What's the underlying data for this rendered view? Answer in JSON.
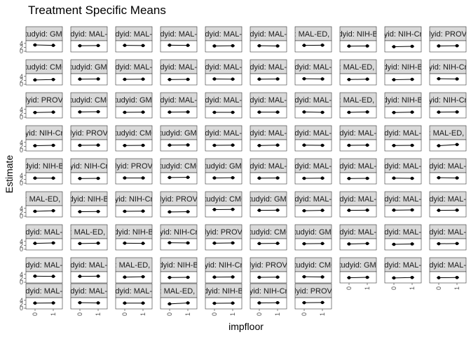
{
  "chart_data": {
    "type": "scatter",
    "layout": "facet-grid",
    "title": "Treatment Specific Means",
    "xlabel": "impfloor",
    "ylabel": "Estimate",
    "x_categories": [
      "0",
      "1"
    ],
    "y_ticks": [
      "0",
      "2",
      "4"
    ],
    "ylim": [
      0,
      5
    ],
    "grid": false,
    "ncol": 10,
    "colors": {
      "strip_fill": "#d9d9d9",
      "strip_border": "#333333",
      "panel_border": "#333333",
      "point": "#000000",
      "line": "#000000"
    },
    "panels": [
      {
        "label": "studyid: GMS",
        "values": [
          3.2,
          3.0
        ]
      },
      {
        "label": "studyid: MAL-ED",
        "values": [
          2.8,
          2.9
        ]
      },
      {
        "label": "studyid: MAL-ED",
        "values": [
          3.0,
          2.9
        ]
      },
      {
        "label": "studyid: MAL-ED",
        "values": [
          3.1,
          3.0
        ]
      },
      {
        "label": "studyid: MAL-ED",
        "values": [
          2.7,
          2.8
        ]
      },
      {
        "label": "studyid: MAL-ED",
        "values": [
          2.8,
          2.7
        ]
      },
      {
        "label": "studyid: MAL-ED, country",
        "values": [
          3.0,
          3.1
        ]
      },
      {
        "label": "studyid: NIH-Birth",
        "values": [
          2.6,
          2.7
        ]
      },
      {
        "label": "studyid: NIH-Crypto",
        "values": [
          2.3,
          2.5
        ]
      },
      {
        "label": "studyid: PROVIDE",
        "values": [
          2.7,
          2.8
        ]
      },
      {
        "label": "studyid: CMC",
        "values": [
          2.2,
          2.4
        ]
      },
      {
        "label": "studyid: GMS",
        "values": [
          2.6,
          2.7
        ]
      },
      {
        "label": "studyid: MAL-ED",
        "values": [
          2.5,
          2.6
        ]
      },
      {
        "label": "studyid: MAL-ED",
        "values": [
          2.4,
          2.5
        ]
      },
      {
        "label": "studyid: MAL-ED",
        "values": [
          2.7,
          2.6
        ]
      },
      {
        "label": "studyid: MAL-ED",
        "values": [
          2.6,
          2.7
        ]
      },
      {
        "label": "studyid: MAL-ED",
        "values": [
          2.8,
          2.7
        ]
      },
      {
        "label": "studyid: MAL-ED, country",
        "values": [
          2.4,
          2.6
        ]
      },
      {
        "label": "studyid: NIH-Birth",
        "values": [
          2.3,
          2.5
        ]
      },
      {
        "label": "studyid: NIH-Crypto",
        "values": [
          2.8,
          2.7
        ]
      },
      {
        "label": "studyid: PROVIDE",
        "values": [
          2.4,
          2.6
        ]
      },
      {
        "label": "studyid: CMC",
        "values": [
          2.7,
          2.8
        ]
      },
      {
        "label": "studyid: GMS",
        "values": [
          2.5,
          2.6
        ]
      },
      {
        "label": "studyid: MAL-ED",
        "values": [
          2.6,
          2.7
        ]
      },
      {
        "label": "studyid: MAL-ED",
        "values": [
          2.5,
          2.5
        ]
      },
      {
        "label": "studyid: MAL-ED",
        "values": [
          2.6,
          2.6
        ]
      },
      {
        "label": "studyid: MAL-ED",
        "values": [
          2.7,
          2.5
        ]
      },
      {
        "label": "studyid: MAL-ED, country",
        "values": [
          2.5,
          2.7
        ]
      },
      {
        "label": "studyid: NIH-Birth",
        "values": [
          2.4,
          2.6
        ]
      },
      {
        "label": "studyid: NIH-Crypto",
        "values": [
          2.6,
          2.7
        ]
      },
      {
        "label": "studyid: NIH-Crypto",
        "values": [
          2.3,
          2.5
        ]
      },
      {
        "label": "studyid: PROVIDE",
        "values": [
          2.5,
          2.6
        ]
      },
      {
        "label": "studyid: CMC",
        "values": [
          2.4,
          2.5
        ]
      },
      {
        "label": "studyid: GMS",
        "values": [
          2.6,
          2.7
        ]
      },
      {
        "label": "studyid: MAL-ED",
        "values": [
          2.5,
          2.6
        ]
      },
      {
        "label": "studyid: MAL-ED",
        "values": [
          2.4,
          2.6
        ]
      },
      {
        "label": "studyid: MAL-ED",
        "values": [
          2.6,
          2.5
        ]
      },
      {
        "label": "studyid: MAL-ED",
        "values": [
          2.5,
          2.6
        ]
      },
      {
        "label": "studyid: MAL-ED",
        "values": [
          2.4,
          2.5
        ]
      },
      {
        "label": "studyid: MAL-ED, country",
        "values": [
          2.3,
          2.9
        ]
      },
      {
        "label": "studyid: NIH-Birth",
        "values": [
          2.6,
          2.6
        ]
      },
      {
        "label": "studyid: NIH-Crypto",
        "values": [
          2.4,
          2.5
        ]
      },
      {
        "label": "studyid: PROVIDE",
        "values": [
          2.7,
          2.7
        ]
      },
      {
        "label": "studyid: CMC",
        "values": [
          2.9,
          3.0
        ]
      },
      {
        "label": "studyid: GMS",
        "values": [
          2.7,
          2.8
        ]
      },
      {
        "label": "studyid: MAL-ED",
        "values": [
          2.6,
          2.7
        ]
      },
      {
        "label": "studyid: MAL-ED",
        "values": [
          2.5,
          2.6
        ]
      },
      {
        "label": "studyid: MAL-ED",
        "values": [
          2.4,
          2.5
        ]
      },
      {
        "label": "studyid: MAL-ED",
        "values": [
          2.6,
          2.5
        ]
      },
      {
        "label": "studyid: MAL-ED",
        "values": [
          2.8,
          2.7
        ]
      },
      {
        "label": "studyid: MAL-ED, country",
        "values": [
          2.5,
          2.8
        ]
      },
      {
        "label": "studyid: NIH-Birth",
        "values": [
          2.3,
          2.4
        ]
      },
      {
        "label": "studyid: NIH-Crypto",
        "values": [
          2.5,
          2.6
        ]
      },
      {
        "label": "studyid: PROVIDE",
        "values": [
          2.2,
          2.3
        ]
      },
      {
        "label": "studyid: CMC",
        "values": [
          3.4,
          3.5
        ]
      },
      {
        "label": "studyid: GMS",
        "values": [
          3.0,
          3.1
        ]
      },
      {
        "label": "studyid: MAL-ED",
        "values": [
          2.8,
          3.0
        ]
      },
      {
        "label": "studyid: MAL-ED",
        "values": [
          3.0,
          3.1
        ]
      },
      {
        "label": "studyid: MAL-ED",
        "values": [
          3.1,
          3.2
        ]
      },
      {
        "label": "studyid: MAL-ED",
        "values": [
          3.0,
          3.1
        ]
      },
      {
        "label": "studyid: MAL-ED",
        "values": [
          3.0,
          3.2
        ]
      },
      {
        "label": "studyid: MAL-ED, country",
        "values": [
          2.9,
          3.1
        ]
      },
      {
        "label": "studyid: NIH-Birth",
        "values": [
          3.1,
          3.0
        ]
      },
      {
        "label": "studyid: NIH-Crypto",
        "values": [
          3.3,
          3.2
        ]
      },
      {
        "label": "studyid: PROVIDE",
        "values": [
          3.1,
          3.2
        ]
      },
      {
        "label": "studyid: CMC",
        "values": [
          2.9,
          3.0
        ]
      },
      {
        "label": "studyid: GMS",
        "values": [
          2.8,
          2.9
        ]
      },
      {
        "label": "studyid: MAL-ED",
        "values": [
          2.7,
          2.9
        ]
      },
      {
        "label": "studyid: MAL-ED",
        "values": [
          2.5,
          2.7
        ]
      },
      {
        "label": "studyid: MAL-ED",
        "values": [
          2.8,
          2.9
        ]
      },
      {
        "label": "studyid: MAL-ED",
        "values": [
          3.1,
          3.0
        ]
      },
      {
        "label": "studyid: MAL-ED",
        "values": [
          3.0,
          3.1
        ]
      },
      {
        "label": "studyid: MAL-ED, country",
        "values": [
          2.6,
          2.8
        ]
      },
      {
        "label": "studyid: NIH-Birth",
        "values": [
          2.4,
          2.5
        ]
      },
      {
        "label": "studyid: NIH-Crypto",
        "values": [
          2.6,
          2.7
        ]
      },
      {
        "label": "studyid: PROVIDE",
        "values": [
          2.5,
          2.6
        ]
      },
      {
        "label": "studyid: CMC",
        "values": [
          2.8,
          2.7
        ]
      },
      {
        "label": "studyid: GMS",
        "values": [
          2.3,
          2.5
        ]
      },
      {
        "label": "studyid: MAL-ED",
        "values": [
          2.2,
          2.4
        ]
      },
      {
        "label": "studyid: MAL-ED",
        "values": [
          2.3,
          2.4
        ]
      },
      {
        "label": "studyid: MAL-ED",
        "values": [
          2.6,
          2.7
        ]
      },
      {
        "label": "studyid: MAL-ED",
        "values": [
          2.8,
          2.7
        ]
      },
      {
        "label": "studyid: MAL-ED",
        "values": [
          2.6,
          2.6
        ]
      },
      {
        "label": "studyid: MAL-ED, country",
        "values": [
          2.2,
          2.7
        ]
      },
      {
        "label": "studyid: NIH-Birth",
        "values": [
          2.5,
          2.6
        ]
      },
      {
        "label": "studyid: NIH-Crypto",
        "values": [
          2.7,
          2.8
        ]
      },
      {
        "label": "studyid: PROVIDE",
        "values": [
          2.8,
          2.9
        ]
      }
    ]
  }
}
